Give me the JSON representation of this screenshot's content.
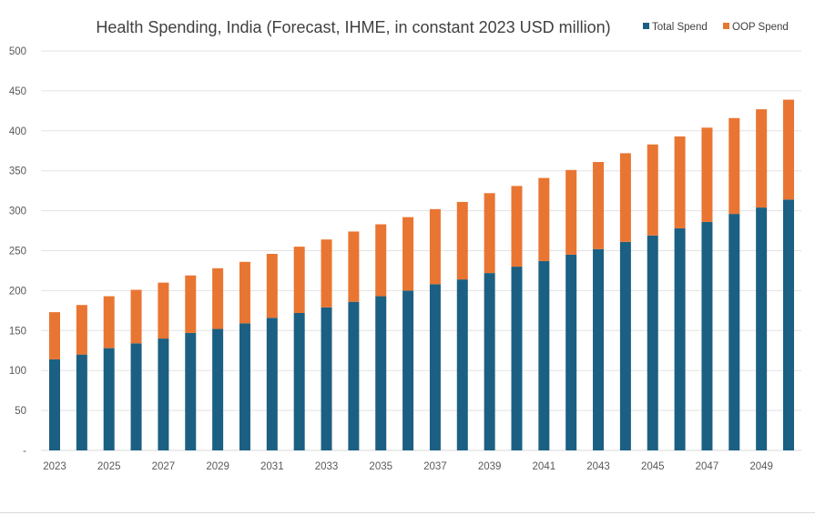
{
  "chart_data": {
    "type": "bar",
    "stacked": true,
    "title": "Health Spending, India (Forecast, IHME, in constant 2023 USD million)",
    "xlabel": "",
    "ylabel": "",
    "ylim": [
      0,
      500
    ],
    "yticks": [
      0,
      50,
      100,
      150,
      200,
      250,
      300,
      350,
      400,
      450,
      500
    ],
    "ytick_labels": [
      "-",
      "50",
      "100",
      "150",
      "200",
      "250",
      "300",
      "350",
      "400",
      "450",
      "500"
    ],
    "grid": true,
    "legend_position": "top-right",
    "categories": [
      "2023",
      "2024",
      "2025",
      "2026",
      "2027",
      "2028",
      "2029",
      "2030",
      "2031",
      "2032",
      "2033",
      "2034",
      "2035",
      "2036",
      "2037",
      "2038",
      "2039",
      "2040",
      "2041",
      "2042",
      "2043",
      "2044",
      "2045",
      "2046",
      "2047",
      "2048",
      "2049",
      "2050"
    ],
    "xtick_labels": [
      "2023",
      "2025",
      "2027",
      "2029",
      "2031",
      "2033",
      "2035",
      "2037",
      "2039",
      "2041",
      "2043",
      "2045",
      "2047",
      "2049"
    ],
    "series": [
      {
        "name": "Total Spend",
        "color": "#1b6082",
        "values": [
          114,
          120,
          128,
          134,
          140,
          147,
          152,
          159,
          166,
          172,
          179,
          186,
          193,
          200,
          208,
          214,
          222,
          230,
          237,
          245,
          252,
          261,
          269,
          278,
          286,
          296,
          304,
          314
        ]
      },
      {
        "name": "OOP Spend",
        "color": "#e97532",
        "values": [
          59,
          62,
          65,
          67,
          70,
          72,
          76,
          77,
          80,
          83,
          85,
          88,
          90,
          92,
          94,
          97,
          100,
          101,
          104,
          106,
          109,
          111,
          114,
          115,
          118,
          120,
          123,
          125
        ]
      }
    ]
  }
}
